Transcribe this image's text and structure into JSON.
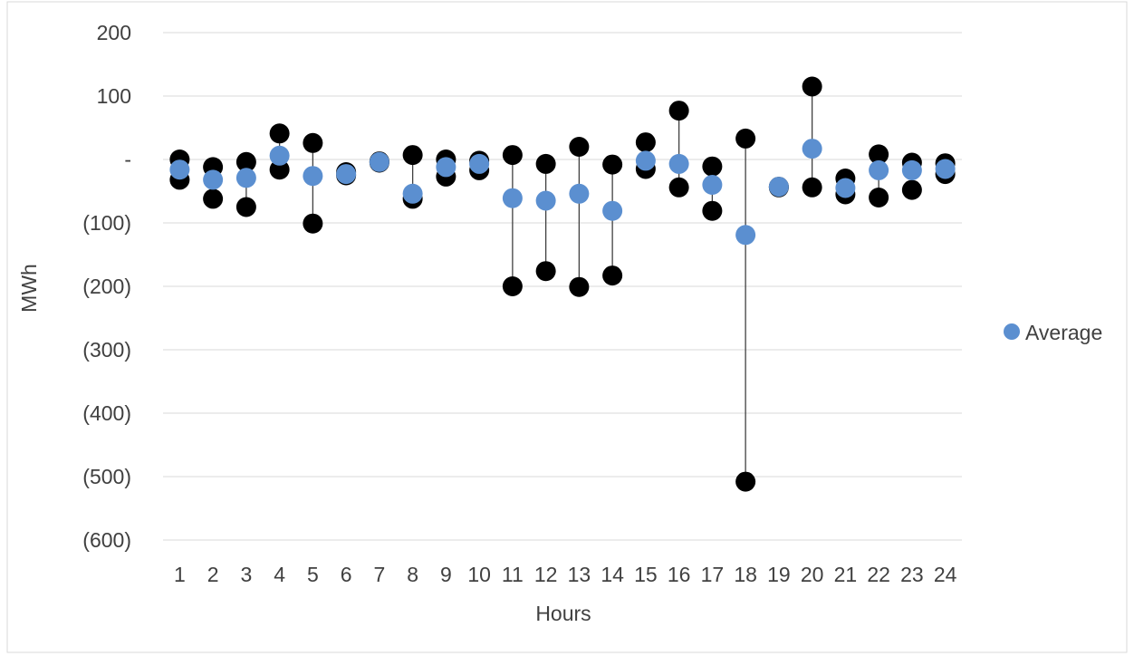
{
  "chart_data": {
    "type": "scatter",
    "title": "",
    "xlabel": "Hours",
    "ylabel": "MWh",
    "x": [
      1,
      2,
      3,
      4,
      5,
      6,
      7,
      8,
      9,
      10,
      11,
      12,
      13,
      14,
      15,
      16,
      17,
      18,
      19,
      20,
      21,
      22,
      23,
      24
    ],
    "ylim": [
      -600,
      200
    ],
    "y_ticks": [
      200,
      100,
      0,
      -100,
      -200,
      -300,
      -400,
      -500,
      -600
    ],
    "y_tick_labels": [
      "200",
      "100",
      "-",
      "(100)",
      "(200)",
      "(300)",
      "(400)",
      "(500)",
      "(600)"
    ],
    "x_tick_labels": [
      "1",
      "2",
      "3",
      "4",
      "5",
      "6",
      "7",
      "8",
      "9",
      "10",
      "11",
      "12",
      "13",
      "14",
      "15",
      "16",
      "17",
      "18",
      "19",
      "20",
      "21",
      "22",
      "23",
      "24"
    ],
    "grid": "horizontal",
    "legend_position": "right",
    "colors": {
      "average": "#5b8fd0",
      "range": "#000000",
      "grid": "#d9d9d9",
      "line": "#404040"
    },
    "series": [
      {
        "name": "Average",
        "values": [
          -16,
          -32,
          -29,
          6,
          -26,
          -23,
          -4,
          -54,
          -12,
          -7,
          -61,
          -65,
          -54,
          -81,
          -2,
          -7,
          -40,
          -119,
          -43,
          17,
          -45,
          -17,
          -17,
          -15
        ]
      },
      {
        "name": "",
        "values": [
          0,
          -12,
          -4,
          41,
          26,
          -20,
          -3,
          7,
          0,
          -2,
          7,
          -7,
          20,
          -8,
          27,
          77,
          -11,
          33,
          -43,
          115,
          -30,
          8,
          -5,
          -6
        ]
      },
      {
        "name": "",
        "values": [
          -32,
          -62,
          -75,
          -16,
          -101,
          -25,
          -5,
          -62,
          -27,
          -17,
          -200,
          -176,
          -201,
          -183,
          -15,
          -44,
          -81,
          -508,
          -44,
          -44,
          -55,
          -60,
          -48,
          -23
        ]
      }
    ]
  }
}
